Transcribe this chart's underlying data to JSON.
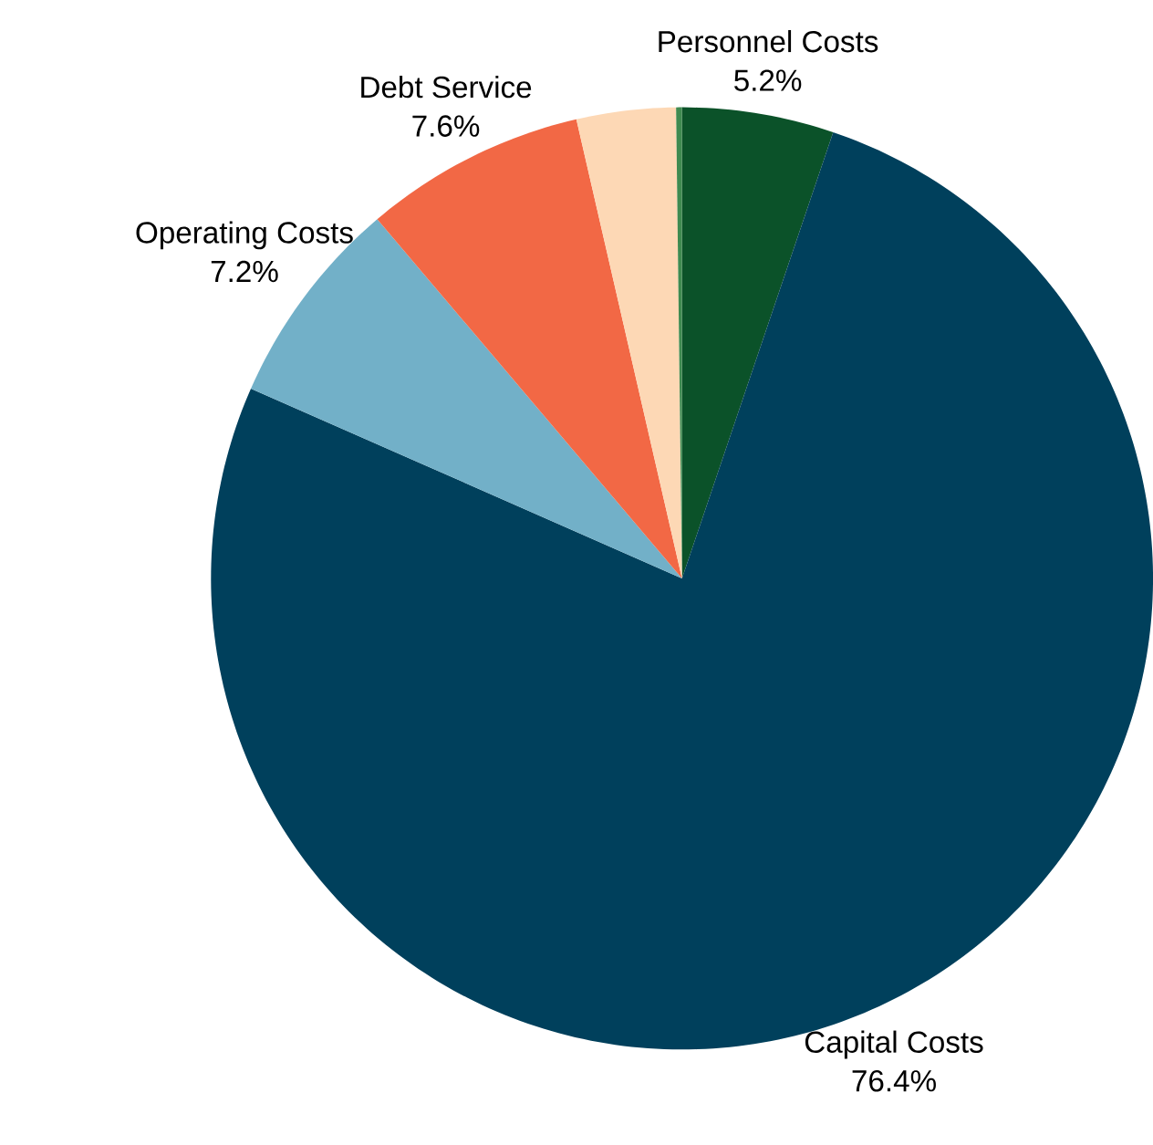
{
  "chart_data": {
    "type": "pie",
    "categories": [
      "Personnel Costs",
      "Capital Costs",
      "Operating Costs",
      "Debt Service",
      null,
      null
    ],
    "values": [
      5.2,
      76.4,
      7.2,
      7.6,
      3.4,
      0.2
    ],
    "value_labels": [
      "5.2%",
      "76.4%",
      "7.2%",
      "7.6%",
      null,
      null
    ],
    "colors": [
      "#0b5229",
      "#00405c",
      "#72b0c8",
      "#f26845",
      "#fdd8b5",
      "#3f8a50"
    ]
  }
}
